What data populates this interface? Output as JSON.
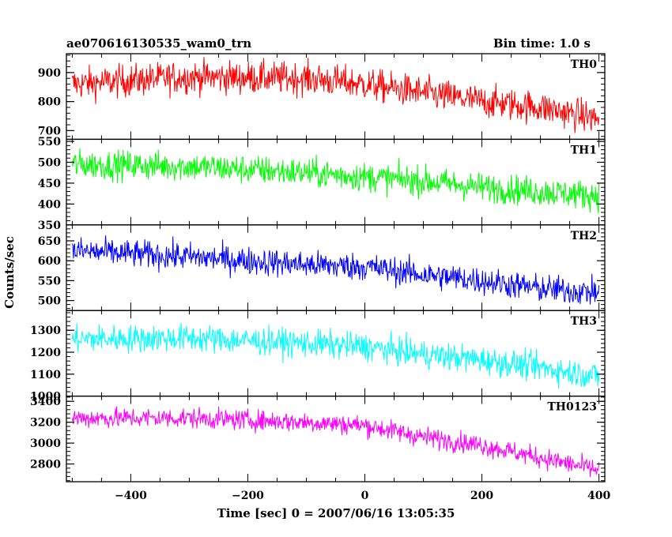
{
  "chart_data": {
    "type": "line",
    "title": "ae070616130535_wam0_trn",
    "bin_time": "Bin time: 1.0 s",
    "xlabel": "Time [sec] 0 = 2007/06/16 13:05:35",
    "ylabel": "Counts/sec",
    "xlim": [
      -510,
      410
    ],
    "x_ticks": [
      -400,
      -200,
      0,
      200,
      400
    ],
    "x_tick_labels": [
      "−400",
      "−200",
      "0",
      "200",
      "400"
    ],
    "grid": false,
    "panels": [
      {
        "name": "TH0",
        "color": "#ff0000",
        "ylim": [
          670,
          965
        ],
        "y_ticks": [
          700,
          800,
          900
        ],
        "y_tick_labels": [
          "700",
          "800",
          "900"
        ],
        "trend": [
          [
            -500,
            860
          ],
          [
            -300,
            885
          ],
          [
            -100,
            880
          ],
          [
            0,
            860
          ],
          [
            100,
            830
          ],
          [
            200,
            800
          ],
          [
            300,
            780
          ],
          [
            400,
            740
          ]
        ],
        "noise": 40
      },
      {
        "name": "TH1",
        "color": "#00ff00",
        "ylim": [
          350,
          555
        ],
        "y_ticks": [
          350,
          400,
          450,
          500,
          550
        ],
        "y_tick_labels": [
          "350",
          "400",
          "450",
          "500",
          "550"
        ],
        "trend": [
          [
            -500,
            495
          ],
          [
            -300,
            490
          ],
          [
            -100,
            475
          ],
          [
            0,
            465
          ],
          [
            100,
            455
          ],
          [
            200,
            440
          ],
          [
            300,
            430
          ],
          [
            400,
            420
          ]
        ],
        "noise": 25
      },
      {
        "name": "TH2",
        "color": "#0000ff",
        "ylim": [
          475,
          690
        ],
        "y_ticks": [
          500,
          550,
          600,
          650
        ],
        "y_tick_labels": [
          "500",
          "550",
          "600",
          "650"
        ],
        "trend": [
          [
            -500,
            625
          ],
          [
            -300,
            610
          ],
          [
            -100,
            590
          ],
          [
            0,
            585
          ],
          [
            100,
            565
          ],
          [
            200,
            550
          ],
          [
            300,
            530
          ],
          [
            400,
            520
          ]
        ],
        "noise": 25
      },
      {
        "name": "TH3",
        "color": "#00ffff",
        "ylim": [
          1000,
          1390
        ],
        "y_ticks": [
          1000,
          1100,
          1200,
          1300
        ],
        "y_tick_labels": [
          "1000",
          "1100",
          "1200",
          "1300"
        ],
        "trend": [
          [
            -500,
            1260
          ],
          [
            -300,
            1265
          ],
          [
            -100,
            1240
          ],
          [
            0,
            1225
          ],
          [
            100,
            1190
          ],
          [
            200,
            1165
          ],
          [
            300,
            1130
          ],
          [
            400,
            1090
          ]
        ],
        "noise": 45
      },
      {
        "name": "TH0123",
        "color": "#ff00ff",
        "ylim": [
          2630,
          3450
        ],
        "y_ticks": [
          2800,
          3000,
          3200,
          3400
        ],
        "y_tick_labels": [
          "2800",
          "3000",
          "3200",
          "3400"
        ],
        "trend": [
          [
            -500,
            3240
          ],
          [
            -300,
            3240
          ],
          [
            -100,
            3200
          ],
          [
            0,
            3170
          ],
          [
            100,
            3060
          ],
          [
            200,
            2980
          ],
          [
            300,
            2860
          ],
          [
            400,
            2740
          ]
        ],
        "noise": 70
      }
    ]
  }
}
